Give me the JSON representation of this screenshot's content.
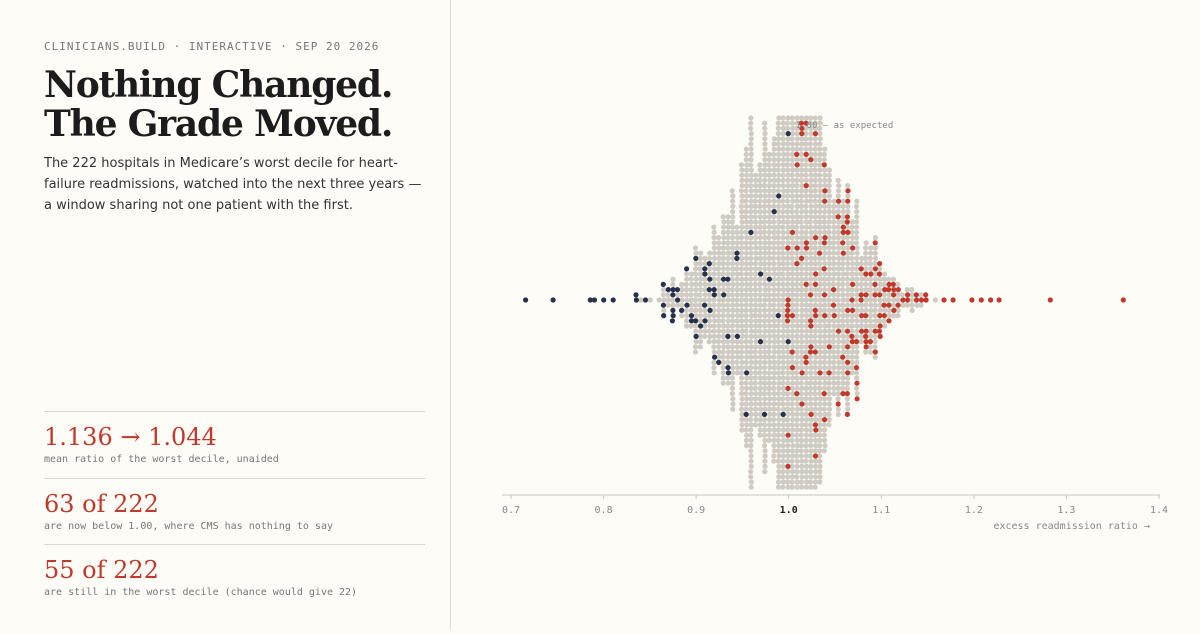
{
  "kicker": "CLINICIANS.BUILD · INTERACTIVE · SEP 20 2026",
  "title": "Nothing Changed. The Grade Moved.",
  "dek": "The 222 hospitals in Medicare’s worst decile for heart-failure readmissions, watched into the next three years — a window sharing not one patient with the first.",
  "stats": [
    {
      "value": "1.136 → 1.044",
      "label": "mean ratio of the worst decile, unaided"
    },
    {
      "value": "63 of 222",
      "label": "are now below 1.00, where CMS has nothing to say"
    },
    {
      "value": "55 of 222",
      "label": "are still in the worst decile (chance would give 22)"
    }
  ],
  "colors": {
    "accent": "#c0392b",
    "below_expected": "#26324d",
    "background_hospitals": "#cfcbc3",
    "axis": "#c9c6bd",
    "text_muted": "#888888"
  },
  "chart_data": {
    "type": "scatter",
    "style": "beeswarm",
    "xlabel": "excess readmission ratio →",
    "xlim": [
      0.7,
      1.4
    ],
    "ticks": [
      "0.7",
      "0.8",
      "0.9",
      "1.0",
      "1.1",
      "1.2",
      "1.3",
      "1.4"
    ],
    "reference_value": 1.0,
    "reference_label": "1.00 — as expected",
    "series": [
      {
        "role": "all-hospitals",
        "color": "#cfcbc3",
        "count": 1900,
        "center": 1.0,
        "spread": 0.05
      },
      {
        "role": "worst-decile-below-1",
        "color": "#26324d",
        "count": 63,
        "outliers": [
          0.715,
          0.748,
          0.783,
          0.79,
          0.8,
          0.81
        ]
      },
      {
        "role": "worst-decile-at-or-above-1",
        "color": "#c0392b",
        "count": 159,
        "outliers": [
          1.18,
          1.2,
          1.21,
          1.22,
          1.23,
          1.28,
          1.362
        ]
      }
    ]
  }
}
